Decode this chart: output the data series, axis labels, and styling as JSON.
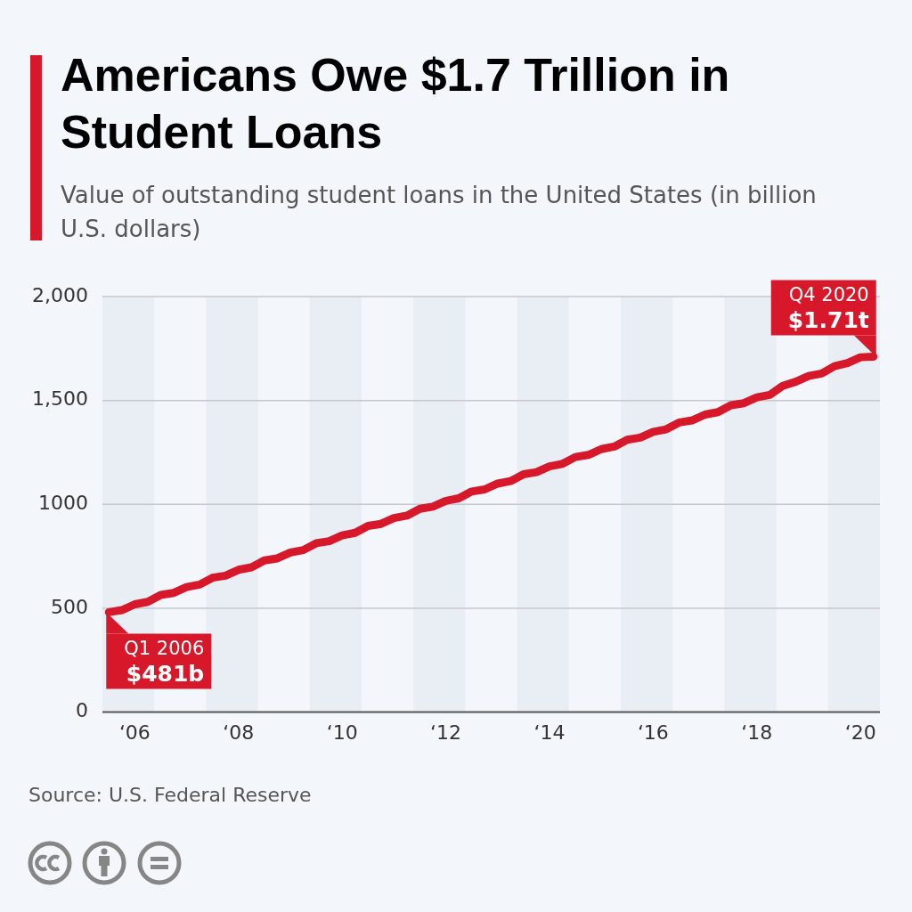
{
  "chart_data": {
    "type": "line",
    "title": "Americans Owe $1.7 Trillion in Student Loans",
    "subtitle": "Value of outstanding student loans in the United States (in billion U.S. dollars)",
    "categories": [
      null,
      null,
      "‘06",
      null,
      null,
      null,
      null,
      null,
      null,
      null,
      "‘08",
      null,
      null,
      null,
      null,
      null,
      null,
      null,
      "‘10",
      null,
      null,
      null,
      null,
      null,
      null,
      null,
      "‘12",
      null,
      null,
      null,
      null,
      null,
      null,
      null,
      "‘14",
      null,
      null,
      null,
      null,
      null,
      null,
      null,
      "‘16",
      null,
      null,
      null,
      null,
      null,
      null,
      null,
      "‘18",
      null,
      null,
      null,
      null,
      null,
      null,
      null,
      "‘20",
      null
    ],
    "series": [
      {
        "color": "#d7182a",
        "values": [
          481,
          491,
          519,
          531,
          564,
          574,
          602,
          614,
          647,
          657,
          685,
          697,
          730,
          740,
          768,
          780,
          813,
          823,
          851,
          863,
          896,
          906,
          934,
          946,
          979,
          989,
          1017,
          1029,
          1062,
          1072,
          1100,
          1112,
          1145,
          1155,
          1183,
          1195,
          1228,
          1238,
          1266,
          1278,
          1311,
          1321,
          1349,
          1361,
          1394,
          1404,
          1432,
          1444,
          1477,
          1487,
          1515,
          1527,
          1570,
          1590,
          1618,
          1630,
          1665,
          1680,
          1708,
          1711
        ]
      }
    ],
    "ylim": [
      0,
      2000
    ],
    "yticks": [
      0,
      500,
      1000,
      {
        "value": 1500,
        "label": "1,500"
      },
      {
        "value": 2000,
        "label": "2,000"
      }
    ],
    "annotations": [
      "Q1 2006\n$481b",
      "Q4 2020\n$1.71t",
      "Source: U.S. Federal Reserve"
    ],
    "grid": "y",
    "marker": "none",
    "line_style": "solid"
  }
}
